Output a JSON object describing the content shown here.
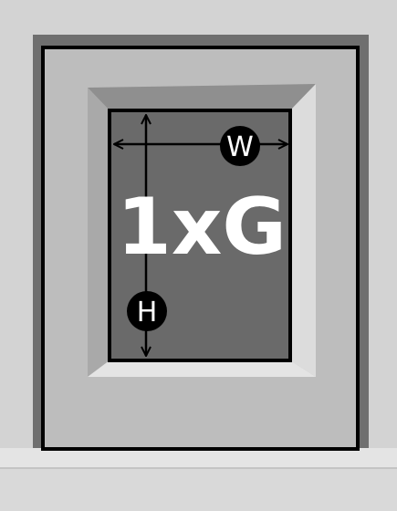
{
  "diagram": {
    "glazing_label": "1xG",
    "width_label": "W",
    "height_label": "H"
  },
  "colors": {
    "wall_light": "#d3d3d3",
    "frame_dark": "#6f6f6f",
    "frame_mid": "#bdbdbd",
    "reveal_top": "#8f8f8f",
    "reveal_side": "#dedede",
    "glass": "#6a6a6a",
    "sill": "#e4e4e4",
    "outline": "#000000",
    "label_text": "#ffffff"
  }
}
